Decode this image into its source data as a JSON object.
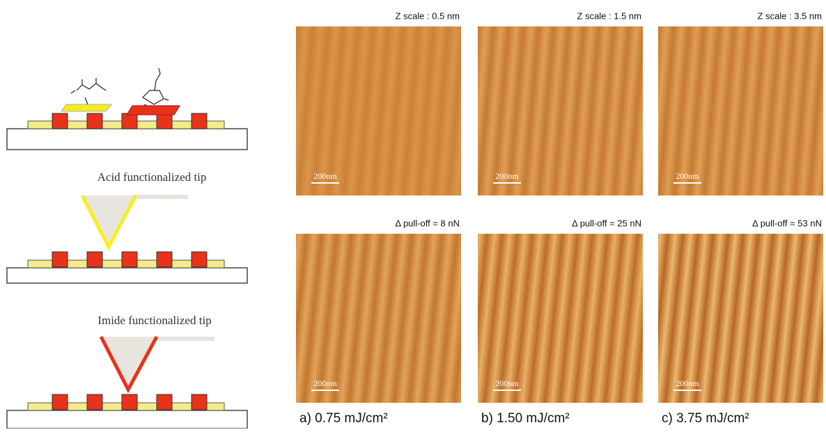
{
  "diagram": {
    "labels": [
      "Acid functionalized tip",
      "Imide functionalized tip"
    ]
  },
  "panels": [
    {
      "header": "Z scale : 0.5 nm",
      "scale_bar": "200nm"
    },
    {
      "header": "Z scale : 1.5 nm",
      "scale_bar": "200nm"
    },
    {
      "header": "Z scale : 3.5 nm",
      "scale_bar": "200nm"
    },
    {
      "header": "Δ pull-off = 8 nN",
      "scale_bar": "200nm"
    },
    {
      "header": "Δ pull-off = 25 nN",
      "scale_bar": "200nm"
    },
    {
      "header": "Δ pull-off = 53 nN",
      "scale_bar": "200nm"
    }
  ],
  "captions": [
    "a) 0.75 mJ/cm²",
    "b) 1.50 mJ/cm²",
    "c) 3.75 mJ/cm²"
  ]
}
